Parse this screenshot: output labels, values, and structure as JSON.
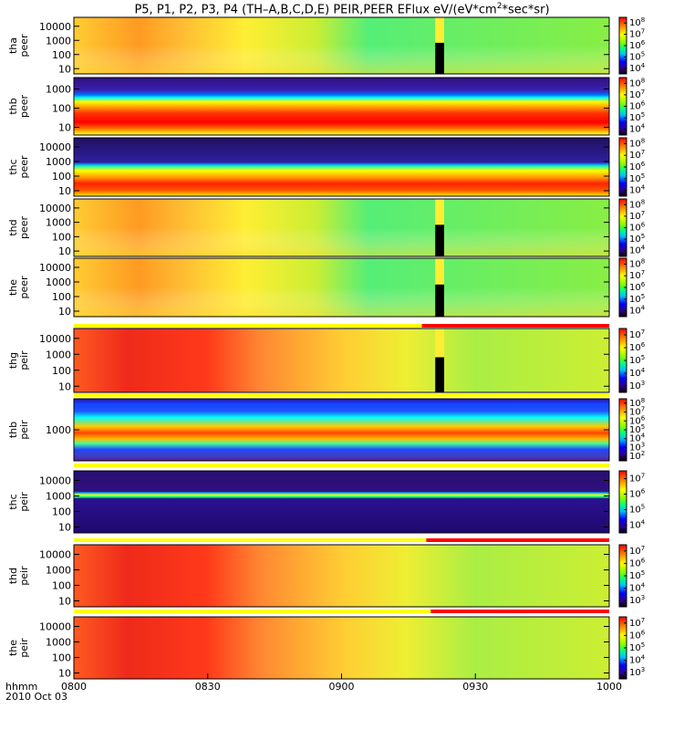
{
  "title": {
    "main": "P5, P1, P2, P3, P4 (TH–A,B,C,D,E) PEIR,PEER EFlux eV/(eV*cm",
    "exp": "2",
    "tail": "*sec*sr)"
  },
  "x_axis": {
    "labels": [
      "0800",
      "0830",
      "0900",
      "0930",
      "1000"
    ],
    "footer_line1": "hhmm",
    "footer_line2": "2010 Oct 03"
  },
  "chart_data": {
    "type": "heatmap",
    "xlim": [
      "08:00",
      "10:00"
    ],
    "x_ticks": [
      "0800",
      "0830",
      "0900",
      "0930",
      "1000"
    ],
    "colorscale": "rainbow (purple-blue-cyan-green-yellow-orange-red)",
    "panels": [
      {
        "id": "tha-peer",
        "ylabel": [
          "tha",
          "peer"
        ],
        "yscale": "log",
        "y_ticks": [
          "10",
          "100",
          "1000",
          "10000"
        ],
        "cbar_ticks": [
          "8",
          "7",
          "6",
          "5",
          "4"
        ],
        "cbar_range": [
          "10^4",
          "10^8"
        ]
      },
      {
        "id": "thb-peer",
        "ylabel": [
          "thb",
          "peer"
        ],
        "yscale": "log",
        "y_ticks": [
          "10",
          "100",
          "1000"
        ],
        "cbar_ticks": [
          "8",
          "7",
          "6",
          "5",
          "4"
        ],
        "cbar_range": [
          "10^4",
          "10^8"
        ]
      },
      {
        "id": "thc-peer",
        "ylabel": [
          "thc",
          "peer"
        ],
        "yscale": "log",
        "y_ticks": [
          "10",
          "100",
          "1000",
          "10000"
        ],
        "cbar_ticks": [
          "8",
          "7",
          "6",
          "5",
          "4"
        ],
        "cbar_range": [
          "10^4",
          "10^8"
        ]
      },
      {
        "id": "thd-peer",
        "ylabel": [
          "thd",
          "peer"
        ],
        "yscale": "log",
        "y_ticks": [
          "10",
          "100",
          "1000",
          "10000"
        ],
        "cbar_ticks": [
          "8",
          "7",
          "6",
          "5",
          "4"
        ],
        "cbar_range": [
          "10^4",
          "10^8"
        ]
      },
      {
        "id": "the-peer",
        "ylabel": [
          "the",
          "peer"
        ],
        "yscale": "log",
        "y_ticks": [
          "10",
          "100",
          "1000",
          "10000"
        ],
        "cbar_ticks": [
          "8",
          "7",
          "6",
          "5",
          "4"
        ],
        "cbar_range": [
          "10^4",
          "10^8"
        ]
      },
      {
        "id": "thg-peir",
        "ylabel": [
          "thg",
          "peir"
        ],
        "yscale": "log",
        "y_ticks": [
          "10",
          "100",
          "1000",
          "10000"
        ],
        "cbar_ticks": [
          "7",
          "6",
          "5",
          "4",
          "3"
        ],
        "cbar_range": [
          "10^3",
          "10^7"
        ]
      },
      {
        "id": "thb-peir",
        "ylabel": [
          "thb",
          "peir"
        ],
        "yscale": "log",
        "y_ticks": [
          "1000"
        ],
        "cbar_ticks": [
          "8",
          "7",
          "6",
          "5",
          "4",
          "3",
          "2"
        ],
        "cbar_range": [
          "10^2",
          "10^8"
        ]
      },
      {
        "id": "thc-peir",
        "ylabel": [
          "thc",
          "peir"
        ],
        "yscale": "log",
        "y_ticks": [
          "10",
          "100",
          "1000",
          "10000"
        ],
        "cbar_ticks": [
          "7",
          "6",
          "5",
          "4"
        ],
        "cbar_range": [
          "10^4",
          "10^7"
        ]
      },
      {
        "id": "thd-peir",
        "ylabel": [
          "thd",
          "peir"
        ],
        "yscale": "log",
        "y_ticks": [
          "10",
          "100",
          "1000",
          "10000"
        ],
        "cbar_ticks": [
          "7",
          "6",
          "5",
          "4",
          "3"
        ],
        "cbar_range": [
          "10^3",
          "10^7"
        ]
      },
      {
        "id": "the-peir",
        "ylabel": [
          "the",
          "peir"
        ],
        "yscale": "log",
        "y_ticks": [
          "10",
          "100",
          "1000",
          "10000"
        ],
        "cbar_ticks": [
          "7",
          "6",
          "5",
          "4",
          "3"
        ],
        "cbar_range": [
          "10^3",
          "10^7"
        ]
      }
    ],
    "mode_bars": [
      {
        "after_panel": "the-peer",
        "segments": [
          {
            "from": "08:00",
            "to": "09:18",
            "color": "#ffff00"
          },
          {
            "from": "09:18",
            "to": "10:00",
            "color": "#ff0000"
          }
        ]
      },
      {
        "after_panel": "thg-peir",
        "segments": [
          {
            "from": "08:00",
            "to": "10:00",
            "color": "#ffff00"
          }
        ]
      },
      {
        "after_panel": "thb-peir",
        "segments": [
          {
            "from": "08:00",
            "to": "10:00",
            "color": "#ffff00"
          }
        ]
      },
      {
        "after_panel": "thc-peir",
        "segments": [
          {
            "from": "08:00",
            "to": "09:19",
            "color": "#ffff00"
          },
          {
            "from": "09:19",
            "to": "10:00",
            "color": "#ff0000"
          }
        ]
      },
      {
        "after_panel": "thd-peir",
        "segments": [
          {
            "from": "08:00",
            "to": "09:20",
            "color": "#ffff00"
          },
          {
            "from": "09:20",
            "to": "10:00",
            "color": "#ff0000"
          }
        ]
      }
    ],
    "data_gaps": [
      {
        "panel": "tha-peer",
        "from": "09:21",
        "to": "09:23"
      },
      {
        "panel": "thd-peer",
        "from": "09:21",
        "to": "09:23"
      },
      {
        "panel": "the-peer",
        "from": "09:21",
        "to": "09:23"
      },
      {
        "panel": "thg-peir",
        "from": "09:21",
        "to": "09:23"
      }
    ]
  }
}
